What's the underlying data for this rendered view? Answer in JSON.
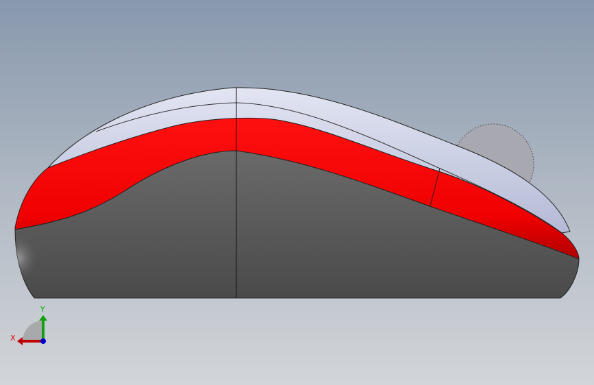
{
  "viewport": {
    "model": "mouse",
    "colors": {
      "shell": "#c8cde6",
      "band": "#ff0000",
      "body": "#5c5c5c",
      "wheel": "#a8a8b0"
    }
  },
  "triad": {
    "x_label": "X",
    "y_label": "Y",
    "x_color": "#e00000",
    "y_color": "#00b000",
    "z_color": "#0000e0"
  }
}
